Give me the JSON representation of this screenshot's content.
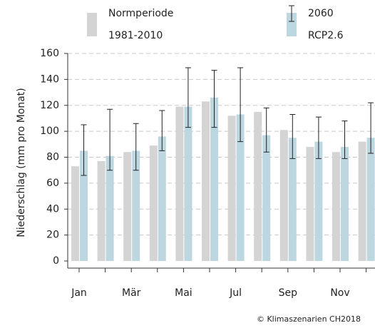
{
  "chart_data": {
    "type": "bar",
    "ylabel": "Niederschlag (mm pro Monat)",
    "credit": "© Klimaszenarien CH2018",
    "categories": [
      "Jan",
      null,
      "Mär",
      null,
      "Mai",
      null,
      "Jul",
      null,
      "Sep",
      null,
      "Nov",
      null
    ],
    "series": [
      {
        "name": "Normperiode",
        "period": "1981-2010",
        "color": "#d4d4d4",
        "values": [
          73,
          77,
          84,
          89,
          119,
          123,
          112,
          115,
          101,
          88,
          84,
          92
        ]
      },
      {
        "name": "2060",
        "period": "RCP2.6",
        "color": "#bdd7e1",
        "values": [
          85,
          81,
          85,
          96,
          119,
          126,
          113,
          97,
          95,
          92,
          88,
          95
        ],
        "low": [
          66,
          70,
          70,
          85,
          103,
          103,
          92,
          84,
          79,
          79,
          79,
          83
        ],
        "high": [
          105,
          117,
          106,
          116,
          149,
          147,
          149,
          118,
          113,
          111,
          108,
          122
        ]
      }
    ],
    "ylim": [
      0,
      160
    ],
    "yticks": [
      0,
      20,
      40,
      60,
      80,
      100,
      120,
      140,
      160
    ],
    "grid": true
  }
}
